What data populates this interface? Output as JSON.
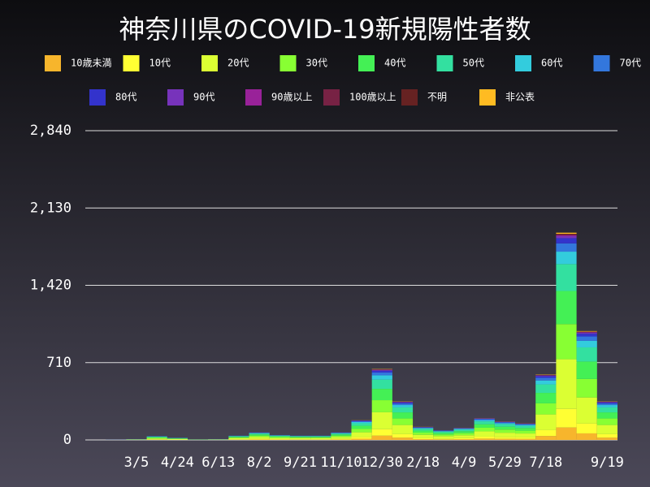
{
  "chart_data": {
    "type": "bar",
    "stacked": true,
    "title": "神奈川県のCOVID-19新規陽性者数",
    "categories": [
      null,
      null,
      "3/5",
      null,
      "4/24",
      null,
      "6/13",
      null,
      "8/2",
      null,
      "9/21",
      null,
      "11/10",
      null,
      "12/30",
      null,
      "2/18",
      null,
      "4/9",
      null,
      "5/29",
      null,
      "7/18",
      null,
      null,
      "9/19"
    ],
    "ylim": [
      0,
      2840
    ],
    "yticks": [
      0,
      {
        "value": 710,
        "label": "710"
      },
      {
        "value": 1420,
        "label": "1,420"
      },
      {
        "value": 2130,
        "label": "2,130"
      },
      {
        "value": 2840,
        "label": "2,840"
      }
    ],
    "grid": true,
    "series": [
      {
        "name": "10歳未満",
        "color": "#f7b52c",
        "values": [
          0,
          0,
          0,
          2,
          1,
          0,
          0,
          2,
          4,
          3,
          2,
          2,
          4,
          11,
          39,
          21,
          7,
          5,
          7,
          12,
          10,
          9,
          36,
          114,
          60,
          21
        ]
      },
      {
        "name": "10代",
        "color": "#ffff33",
        "values": [
          0,
          0,
          1,
          3,
          2,
          0,
          1,
          4,
          6,
          4,
          4,
          4,
          6,
          16,
          59,
          32,
          11,
          8,
          10,
          18,
          15,
          14,
          54,
          171,
          90,
          32
        ]
      },
      {
        "name": "20代",
        "color": "#dbff33",
        "values": [
          0,
          0,
          2,
          8,
          5,
          1,
          2,
          10,
          17,
          11,
          10,
          10,
          17,
          43,
          156,
          84,
          29,
          22,
          26,
          48,
          41,
          36,
          144,
          456,
          240,
          84
        ]
      },
      {
        "name": "30代",
        "color": "#88ff33",
        "values": [
          0,
          0,
          1,
          6,
          3,
          1,
          1,
          7,
          12,
          8,
          7,
          7,
          12,
          31,
          111,
          60,
          20,
          15,
          19,
          34,
          29,
          26,
          102,
          323,
          170,
          60
        ]
      },
      {
        "name": "40代",
        "color": "#44f055",
        "values": [
          0,
          0,
          1,
          6,
          3,
          1,
          1,
          6,
          11,
          7,
          6,
          6,
          11,
          29,
          104,
          56,
          19,
          14,
          18,
          32,
          27,
          24,
          96,
          304,
          160,
          56
        ]
      },
      {
        "name": "50代",
        "color": "#33e0a0",
        "values": [
          0,
          0,
          1,
          5,
          3,
          1,
          1,
          5,
          9,
          6,
          5,
          5,
          9,
          23,
          85,
          46,
          16,
          12,
          14,
          26,
          22,
          20,
          78,
          247,
          130,
          46
        ]
      },
      {
        "name": "60代",
        "color": "#33ccdd",
        "values": [
          0,
          0,
          0,
          2,
          1,
          0,
          0,
          2,
          4,
          3,
          2,
          2,
          4,
          11,
          39,
          21,
          7,
          5,
          7,
          12,
          10,
          9,
          36,
          114,
          60,
          21
        ]
      },
      {
        "name": "70代",
        "color": "#3377dd",
        "values": [
          0,
          1,
          1,
          2,
          1,
          0,
          1,
          2,
          3,
          2,
          2,
          2,
          3,
          7,
          26,
          14,
          5,
          4,
          4,
          8,
          7,
          6,
          24,
          76,
          40,
          14
        ]
      },
      {
        "name": "80代",
        "color": "#3333cc",
        "values": [
          0,
          0,
          1,
          1,
          1,
          0,
          1,
          1,
          2,
          1,
          1,
          1,
          2,
          5,
          16,
          9,
          3,
          2,
          3,
          5,
          4,
          4,
          15,
          48,
          25,
          9
        ]
      },
      {
        "name": "90代",
        "color": "#7733bb",
        "values": [
          0,
          0,
          0,
          0,
          0,
          0,
          0,
          0,
          1,
          0,
          0,
          0,
          1,
          2,
          7,
          4,
          1,
          1,
          1,
          2,
          2,
          2,
          6,
          19,
          10,
          4
        ]
      },
      {
        "name": "90歳以上",
        "color": "#992299",
        "values": [
          0,
          0,
          0,
          0,
          0,
          0,
          0,
          0,
          0,
          0,
          0,
          0,
          0,
          1,
          3,
          2,
          1,
          0,
          1,
          1,
          1,
          1,
          3,
          10,
          5,
          2
        ]
      },
      {
        "name": "100歳以上",
        "color": "#772244",
        "values": [
          0,
          0,
          0,
          0,
          0,
          0,
          0,
          0,
          0,
          0,
          0,
          0,
          0,
          0,
          0,
          0,
          0,
          0,
          0,
          0,
          0,
          0,
          0,
          1,
          0,
          0
        ]
      },
      {
        "name": "不明",
        "color": "#662222",
        "values": [
          0,
          0,
          0,
          0,
          0,
          0,
          0,
          0,
          0,
          0,
          0,
          0,
          0,
          1,
          3,
          2,
          1,
          0,
          1,
          1,
          1,
          1,
          3,
          10,
          5,
          2
        ]
      },
      {
        "name": "非公表",
        "color": "#ffbb22",
        "values": [
          0,
          0,
          0,
          0,
          0,
          0,
          0,
          0,
          0,
          0,
          0,
          0,
          0,
          1,
          3,
          2,
          1,
          0,
          1,
          1,
          1,
          1,
          3,
          10,
          5,
          2
        ]
      }
    ]
  }
}
